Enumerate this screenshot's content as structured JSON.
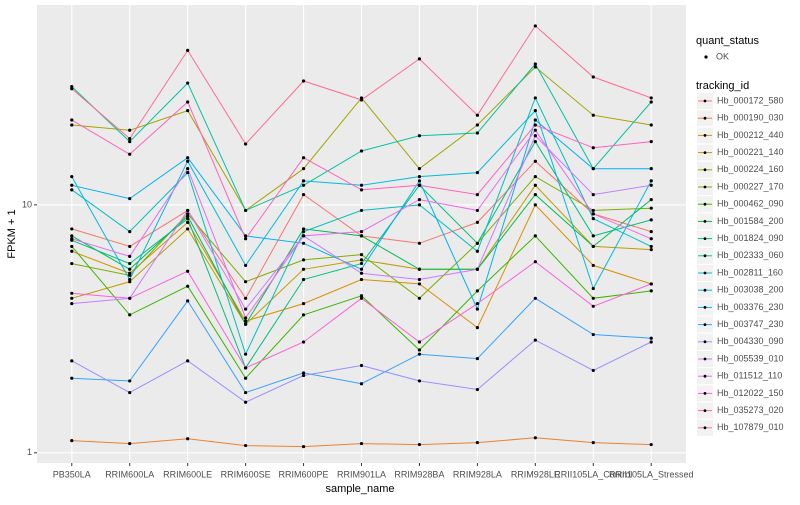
{
  "chart_data": {
    "type": "line",
    "log_y": true,
    "grid": true,
    "x_label": "sample_name",
    "y_label": "FPKM + 1",
    "categories": [
      "PB350LA",
      "RRIM600LA",
      "RRIM600LE",
      "RRIM600SE",
      "RRIM600PE",
      "RRIM901LA",
      "RRIM928BA",
      "RRIM928LA",
      "RRIM928LE",
      "RRII105LA_Control",
      "RRII105LA_Stressed"
    ],
    "ylim": [
      0.91,
      64
    ],
    "yticks": [
      1,
      10
    ],
    "point_legend": {
      "title": "quant_status",
      "labels": [
        "OK"
      ]
    },
    "legend_title": "tracking_id",
    "series": [
      {
        "name": "Hb_000172_580",
        "color": "#F8766D",
        "values": [
          8,
          6.8,
          9.5,
          4.2,
          11,
          7.5,
          7,
          8.5,
          15,
          9.2,
          7.8
        ]
      },
      {
        "name": "Hb_000190_030",
        "color": "#EA8331",
        "values": [
          1.12,
          1.09,
          1.14,
          1.07,
          1.06,
          1.09,
          1.08,
          1.1,
          1.15,
          1.1,
          1.08
        ]
      },
      {
        "name": "Hb_000212_440",
        "color": "#D89000",
        "values": [
          6.5,
          5.3,
          8.5,
          3.4,
          4,
          5,
          4.8,
          3.2,
          10,
          5.7,
          4.8
        ]
      },
      {
        "name": "Hb_000221_140",
        "color": "#C09B00",
        "values": [
          4.2,
          4.9,
          8,
          3.3,
          5.5,
          6,
          5.5,
          5.5,
          12,
          6.8,
          6.6
        ]
      },
      {
        "name": "Hb_000224_160",
        "color": "#A3A500",
        "values": [
          21,
          20,
          24,
          9.5,
          14,
          27,
          14,
          21,
          36,
          23,
          21
        ]
      },
      {
        "name": "Hb_000227_170",
        "color": "#7CAE00",
        "values": [
          5.8,
          5.2,
          9.2,
          4.9,
          6,
          6.3,
          4.2,
          7,
          13,
          9.5,
          9.7
        ]
      },
      {
        "name": "Hb_000462_090",
        "color": "#39B600",
        "values": [
          6.8,
          3.6,
          4.7,
          2,
          3.6,
          4.3,
          2.6,
          4.5,
          7.5,
          4.2,
          4.5
        ]
      },
      {
        "name": "Hb_001584_200",
        "color": "#00BB4E",
        "values": [
          7.5,
          5.5,
          9,
          3.3,
          8,
          7.5,
          5.5,
          5.5,
          11,
          6.8,
          10.5
        ]
      },
      {
        "name": "Hb_001824_090",
        "color": "#00BF7D",
        "values": [
          7.2,
          5.8,
          8.8,
          2.2,
          5,
          5.8,
          12,
          7,
          18,
          7.5,
          8.7
        ]
      },
      {
        "name": "Hb_002333_060",
        "color": "#00C1A3",
        "values": [
          30,
          18,
          31,
          9.5,
          12,
          16.5,
          19,
          19.5,
          37,
          14,
          26
        ]
      },
      {
        "name": "Hb_002811_160",
        "color": "#00BFC4",
        "values": [
          11.5,
          7.8,
          13.5,
          2.5,
          7.8,
          9.5,
          10,
          6.5,
          27,
          8.8,
          6.8
        ]
      },
      {
        "name": "Hb_003038_200",
        "color": "#00BAE0",
        "values": [
          13,
          5,
          15,
          5.7,
          12.5,
          12,
          13,
          13.5,
          24,
          4.6,
          12.5
        ]
      },
      {
        "name": "Hb_003376_230",
        "color": "#00B0F6",
        "values": [
          12,
          10.6,
          15.5,
          7.5,
          7,
          5.5,
          12.5,
          3.8,
          22,
          14,
          14
        ]
      },
      {
        "name": "Hb_003747_230",
        "color": "#35A2FF",
        "values": [
          2,
          1.95,
          4.1,
          1.75,
          2.1,
          1.9,
          2.5,
          2.4,
          4.2,
          3,
          2.9
        ]
      },
      {
        "name": "Hb_004330_090",
        "color": "#9590FF",
        "values": [
          2.35,
          1.75,
          2.35,
          1.6,
          2.05,
          2.25,
          1.95,
          1.8,
          2.85,
          2.15,
          2.8
        ]
      },
      {
        "name": "Hb_005539_010",
        "color": "#C77CFF",
        "values": [
          4,
          4.2,
          9.5,
          3.8,
          7.5,
          5.3,
          5,
          5.5,
          19,
          11,
          12
        ]
      },
      {
        "name": "Hb_011512_110",
        "color": "#E76BF3",
        "values": [
          7.3,
          6.2,
          14,
          3.5,
          7.5,
          7.8,
          10.5,
          9.5,
          20,
          9.2,
          7.3
        ]
      },
      {
        "name": "Hb_012022_150",
        "color": "#FA62DB",
        "values": [
          4.4,
          4.2,
          5.4,
          2.2,
          2.8,
          4.2,
          2.8,
          4,
          5.9,
          3.9,
          4.8
        ]
      },
      {
        "name": "Hb_035273_020",
        "color": "#FF62BC",
        "values": [
          22,
          16,
          26,
          7.3,
          15.5,
          11.5,
          12,
          11,
          21,
          17,
          18
        ]
      },
      {
        "name": "Hb_107879_010",
        "color": "#FF6C91",
        "values": [
          29.4,
          18.5,
          42,
          17.6,
          31.6,
          26.5,
          38.8,
          23,
          52.7,
          32.8,
          27
        ]
      }
    ]
  }
}
